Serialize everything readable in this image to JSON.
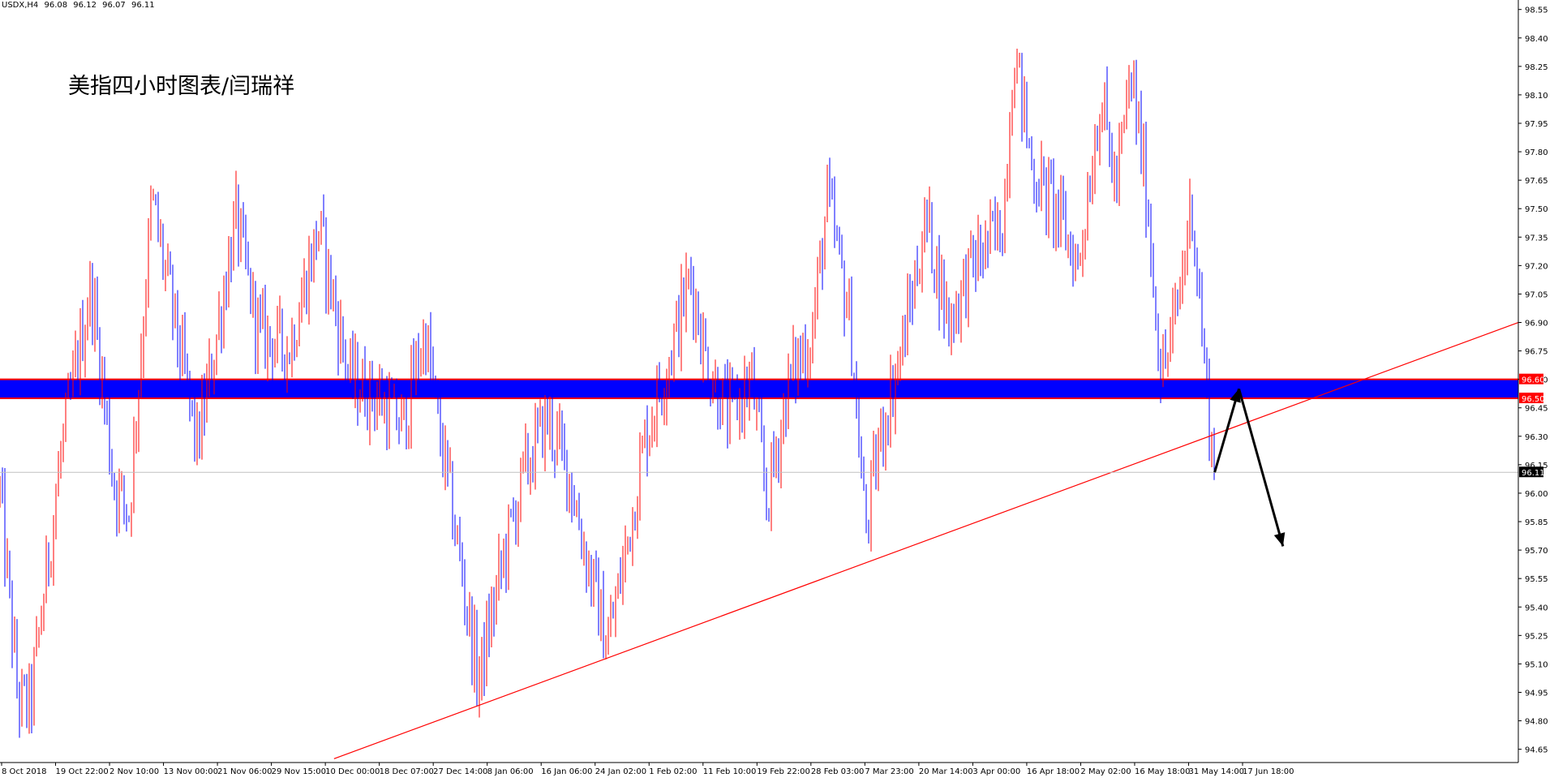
{
  "header": {
    "symbol": "USDX,H4",
    "open": "96.08",
    "high": "96.12",
    "low": "96.07",
    "close": "96.11"
  },
  "chart_title": "美指四小时图表/闫瑞祥",
  "colors": {
    "background": "#ffffff",
    "bull_bar": "#ff0000",
    "bear_bar": "#0000ff",
    "zone_fill": "#0000ff",
    "zone_border": "#ff0000",
    "trendline": "#ff0000",
    "arrow": "#000000",
    "price_label": "#000000"
  },
  "chart_data": {
    "type": "ohlc",
    "title": "美指四小时图表/闫瑞祥",
    "xlabel": "",
    "ylabel": "",
    "ylim": [
      94.58,
      98.6
    ],
    "y_ticks": [
      "98.55",
      "98.40",
      "98.25",
      "98.10",
      "97.95",
      "97.80",
      "97.65",
      "97.50",
      "97.35",
      "97.20",
      "97.05",
      "96.90",
      "96.75",
      "96.60",
      "96.45",
      "96.30",
      "96.15",
      "96.00",
      "95.85",
      "95.70",
      "95.55",
      "95.40",
      "95.25",
      "95.10",
      "94.95",
      "94.80",
      "94.65"
    ],
    "x_ticks": [
      "8 Oct 2018",
      "19 Oct 22:00",
      "2 Nov 10:00",
      "13 Nov 00:00",
      "21 Nov 06:00",
      "29 Nov 15:00",
      "10 Dec 00:00",
      "18 Dec 07:00",
      "27 Dec 14:00",
      "8 Jan 06:00",
      "16 Jan 06:00",
      "24 Jan 02:00",
      "1 Feb 02:00",
      "11 Feb 10:00",
      "19 Feb 22:00",
      "28 Feb 03:00",
      "7 Mar 23:00",
      "20 Mar 14:00",
      "3 Apr 00:00",
      "16 Apr 18:00",
      "2 May 02:00",
      "16 May 18:00",
      "31 May 14:00",
      "17 Jun 18:00"
    ],
    "price_path": [
      {
        "t": 0,
        "price": 96.0
      },
      {
        "t": 0.012,
        "price": 94.9
      },
      {
        "t": 0.02,
        "price": 94.88
      },
      {
        "t": 0.04,
        "price": 96.2
      },
      {
        "t": 0.06,
        "price": 97.1
      },
      {
        "t": 0.075,
        "price": 96.05
      },
      {
        "t": 0.085,
        "price": 95.9
      },
      {
        "t": 0.1,
        "price": 97.55
      },
      {
        "t": 0.115,
        "price": 96.9
      },
      {
        "t": 0.13,
        "price": 96.25
      },
      {
        "t": 0.14,
        "price": 96.7
      },
      {
        "t": 0.155,
        "price": 97.45
      },
      {
        "t": 0.17,
        "price": 96.85
      },
      {
        "t": 0.19,
        "price": 96.75
      },
      {
        "t": 0.21,
        "price": 97.4
      },
      {
        "t": 0.23,
        "price": 96.6
      },
      {
        "t": 0.25,
        "price": 96.5
      },
      {
        "t": 0.265,
        "price": 96.35
      },
      {
        "t": 0.28,
        "price": 96.85
      },
      {
        "t": 0.29,
        "price": 96.3
      },
      {
        "t": 0.3,
        "price": 95.8
      },
      {
        "t": 0.315,
        "price": 95.0
      },
      {
        "t": 0.33,
        "price": 95.6
      },
      {
        "t": 0.345,
        "price": 96.1
      },
      {
        "t": 0.36,
        "price": 96.4
      },
      {
        "t": 0.375,
        "price": 96.1
      },
      {
        "t": 0.385,
        "price": 95.7
      },
      {
        "t": 0.4,
        "price": 95.2
      },
      {
        "t": 0.41,
        "price": 95.6
      },
      {
        "t": 0.425,
        "price": 96.3
      },
      {
        "t": 0.44,
        "price": 96.7
      },
      {
        "t": 0.455,
        "price": 97.15
      },
      {
        "t": 0.465,
        "price": 96.7
      },
      {
        "t": 0.48,
        "price": 96.4
      },
      {
        "t": 0.495,
        "price": 96.6
      },
      {
        "t": 0.505,
        "price": 95.95
      },
      {
        "t": 0.52,
        "price": 96.6
      },
      {
        "t": 0.535,
        "price": 96.85
      },
      {
        "t": 0.545,
        "price": 97.55
      },
      {
        "t": 0.56,
        "price": 96.9
      },
      {
        "t": 0.57,
        "price": 95.8
      },
      {
        "t": 0.58,
        "price": 96.3
      },
      {
        "t": 0.595,
        "price": 96.8
      },
      {
        "t": 0.61,
        "price": 97.45
      },
      {
        "t": 0.625,
        "price": 96.9
      },
      {
        "t": 0.64,
        "price": 97.2
      },
      {
        "t": 0.66,
        "price": 97.4
      },
      {
        "t": 0.668,
        "price": 98.35
      },
      {
        "t": 0.68,
        "price": 97.7
      },
      {
        "t": 0.695,
        "price": 97.5
      },
      {
        "t": 0.71,
        "price": 97.2
      },
      {
        "t": 0.725,
        "price": 98.1
      },
      {
        "t": 0.735,
        "price": 97.6
      },
      {
        "t": 0.745,
        "price": 98.2
      },
      {
        "t": 0.755,
        "price": 97.6
      },
      {
        "t": 0.765,
        "price": 96.6
      },
      {
        "t": 0.775,
        "price": 96.95
      },
      {
        "t": 0.785,
        "price": 97.55
      },
      {
        "t": 0.795,
        "price": 96.5
      },
      {
        "t": 0.8,
        "price": 96.11
      }
    ],
    "support_zone": {
      "low": 96.5,
      "high": 96.6,
      "labels": [
        "96.60",
        "96.50"
      ]
    },
    "trendline": [
      {
        "t": 0.22,
        "price": 94.6
      },
      {
        "t": 1.0,
        "price": 96.9
      }
    ],
    "current_price": "96.11",
    "projection_arrows": [
      {
        "from": {
          "t": 0.8,
          "price": 96.11
        },
        "to": {
          "t": 0.816,
          "price": 96.55
        }
      },
      {
        "from": {
          "t": 0.816,
          "price": 96.55
        },
        "to": {
          "t": 0.845,
          "price": 95.72
        }
      }
    ],
    "legend": "none",
    "grid": false
  }
}
